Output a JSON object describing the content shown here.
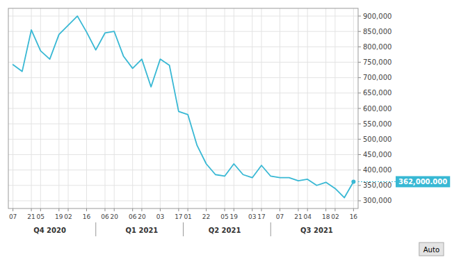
{
  "chart_data": {
    "type": "line",
    "categories": [
      "07",
      null,
      "21",
      "05",
      null,
      "19",
      "02",
      null,
      "16",
      null,
      "06",
      "20",
      null,
      "06",
      "20",
      null,
      "03",
      null,
      "17",
      "01",
      null,
      "22",
      null,
      "05",
      "19",
      null,
      "03",
      "17",
      null,
      "07",
      null,
      "21",
      "04",
      null,
      "18",
      "02",
      null,
      "16"
    ],
    "values": [
      742000,
      720000,
      855000,
      787000,
      760000,
      840000,
      870000,
      900000,
      848000,
      790000,
      845000,
      850000,
      770000,
      730000,
      760000,
      670000,
      760000,
      740000,
      590000,
      580000,
      480000,
      420000,
      385000,
      380000,
      420000,
      385000,
      375000,
      415000,
      380000,
      375000,
      375000,
      365000,
      370000,
      350000,
      360000,
      340000,
      310000,
      362000
    ],
    "color": "#38b8d4",
    "x_groups": [
      "Q4 2020",
      "Q1 2021",
      "Q2 2021",
      "Q3 2021"
    ],
    "ylim": [
      275000,
      925000
    ],
    "yticks": [
      {
        "value": 300000,
        "label": "300,000"
      },
      {
        "value": 350000,
        "label": "350,000"
      },
      {
        "value": 400000,
        "label": "400,000"
      },
      {
        "value": 450000,
        "label": "450,000"
      },
      {
        "value": 500000,
        "label": "500,000"
      },
      {
        "value": 550000,
        "label": "550,000"
      },
      {
        "value": 600000,
        "label": "600,000"
      },
      {
        "value": 650000,
        "label": "650,000"
      },
      {
        "value": 700000,
        "label": "700,000"
      },
      {
        "value": 750000,
        "label": "750,000"
      },
      {
        "value": 800000,
        "label": "800,000"
      },
      {
        "value": 850000,
        "label": "850,000"
      },
      {
        "value": 900000,
        "label": "900,000"
      }
    ],
    "grid": true,
    "annotations": [
      {
        "text": "362,000.000",
        "y": 362000
      },
      {
        "text": "Auto"
      }
    ]
  }
}
